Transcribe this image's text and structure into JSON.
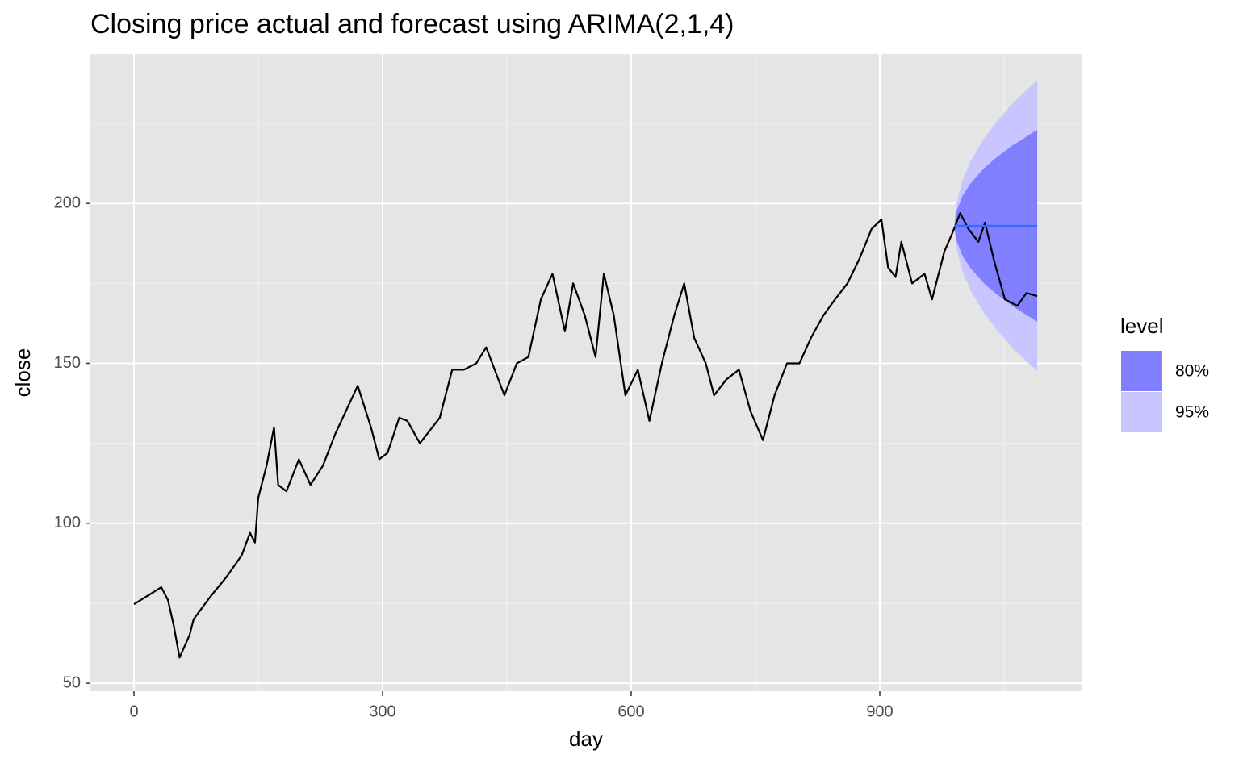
{
  "chart_data": {
    "type": "line",
    "title": "Closing price actual and forecast using ARIMA(2,1,4)",
    "x_label": "day",
    "y_label": "close",
    "xlim": [
      -52.6,
      1143.5
    ],
    "ylim": [
      47.5,
      246.7
    ],
    "xticks": [
      0,
      300,
      600,
      900
    ],
    "yticks": [
      50,
      100,
      150,
      200
    ],
    "x_minor_grid": [
      150,
      450,
      750,
      1050
    ],
    "y_minor_grid": [
      75,
      125,
      175,
      225
    ],
    "grid": true,
    "series": [
      {
        "color": "#000000",
        "x": [
          0,
          33,
          41,
          48,
          55,
          67,
          72,
          92,
          111,
          130,
          140,
          146,
          150,
          160,
          169,
          174,
          184,
          199,
          213,
          228,
          243,
          270,
          286,
          296,
          306,
          320,
          330,
          345,
          369,
          384,
          398,
          413,
          425,
          447,
          462,
          476,
          491,
          505,
          520,
          530,
          544,
          557,
          567,
          579,
          593,
          608,
          622,
          637,
          652,
          664,
          676,
          690,
          700,
          715,
          730,
          744,
          759,
          773,
          788,
          803,
          817,
          832,
          846,
          861,
          876,
          890,
          902,
          910,
          919,
          926,
          939,
          954,
          963,
          978,
          988,
          997,
          1007,
          1019,
          1027,
          1038,
          1051,
          1066,
          1077,
          1090
        ],
        "values": [
          74.7,
          80,
          76,
          68,
          58,
          65,
          70,
          77,
          83,
          90,
          97,
          94,
          108,
          118,
          130,
          112,
          110,
          120,
          112,
          118,
          128,
          143,
          130,
          120,
          122,
          133,
          132,
          125,
          133,
          148,
          148,
          150,
          155,
          140,
          150,
          152,
          170,
          178,
          160,
          175,
          165,
          152,
          178,
          165,
          140,
          148,
          132,
          150,
          165,
          175,
          158,
          150,
          140,
          145,
          148,
          135,
          126,
          140,
          150,
          150,
          158,
          165,
          170,
          175,
          183,
          192,
          195,
          180,
          177,
          188,
          175,
          178,
          170,
          185,
          191,
          197,
          192,
          188,
          194,
          182,
          170,
          168,
          172,
          171
        ]
      }
    ],
    "forecast": {
      "color": "#3b66ff",
      "x": [
        990,
        992,
        1000,
        1010,
        1025,
        1040,
        1060,
        1090
      ],
      "mean": [
        193,
        193,
        193,
        193,
        193,
        193,
        193,
        193
      ]
    },
    "legend": {
      "title": "level",
      "position": "right"
    },
    "bands": [
      {
        "name": "80%",
        "color": "#7f7fff",
        "lower": [
          193,
          188.8,
          183.5,
          179.6,
          175.2,
          171.8,
          167.9,
          163
        ],
        "upper": [
          193,
          197.2,
          202.5,
          206.4,
          210.8,
          214.2,
          218.1,
          223
        ]
      },
      {
        "name": "95%",
        "color": "#c9c5ff",
        "lower": [
          193,
          186.6,
          178.6,
          172.6,
          166,
          160.8,
          154.8,
          147.4
        ],
        "upper": [
          193,
          199.4,
          207.4,
          213.4,
          220,
          225.2,
          231.2,
          238.6
        ]
      }
    ]
  }
}
